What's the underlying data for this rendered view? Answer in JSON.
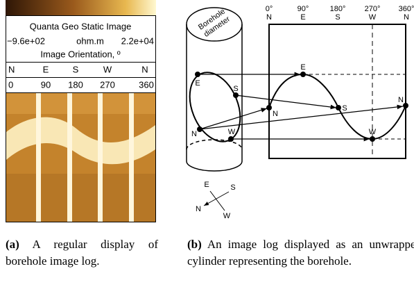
{
  "panel_a": {
    "title": "Quanta Geo Static Image",
    "min": "−9.6e+02",
    "unit": "ohm.m",
    "max": "2.2e+04",
    "orientation_label": "Image Orientation, º",
    "directions": [
      "N",
      "E",
      "S",
      "W",
      "N"
    ],
    "degrees": [
      0,
      90,
      180,
      270,
      360
    ]
  },
  "panel_b": {
    "degree_labels": [
      "0°",
      "90°",
      "180°",
      "270°",
      "360°"
    ],
    "directions": [
      "N",
      "E",
      "S",
      "W",
      "N"
    ],
    "diameter_label": [
      "Borehole",
      "diameter"
    ],
    "cylinder_points": [
      "E",
      "S",
      "N",
      "W"
    ],
    "unwrapped_points": [
      "E",
      "N",
      "S",
      "W",
      "N"
    ],
    "compass": [
      "E",
      "S",
      "N",
      "W"
    ]
  },
  "captions": {
    "a": {
      "label": "(a)",
      "text": "A regular display of borehole image log."
    },
    "b": {
      "label": "(b)",
      "text": "An image log displayed as an unwrapped cylinder representing the borehole."
    }
  }
}
